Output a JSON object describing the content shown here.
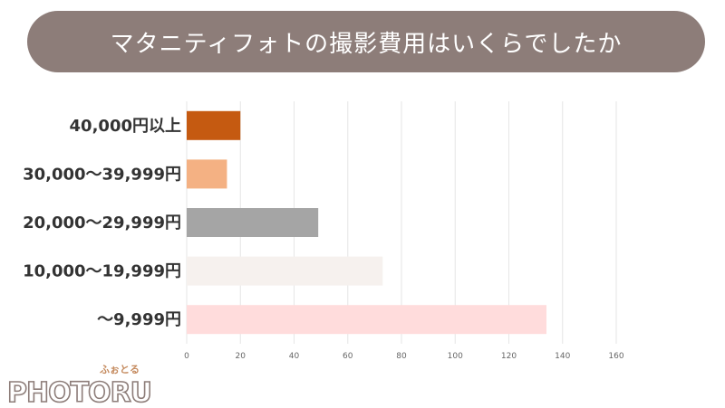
{
  "title": "マタニティフォトの撮影費用はいくらでしたか",
  "chart_data": {
    "type": "bar",
    "orientation": "horizontal",
    "categories": [
      "40,000円以上",
      "30,000〜39,999円",
      "20,000〜29,999円",
      "10,000〜19,999円",
      "〜9,999円"
    ],
    "values": [
      20,
      15,
      49,
      73,
      134
    ],
    "colors": [
      "#c55a11",
      "#f4b183",
      "#a5a5a5",
      "#f6f1ee",
      "#ffdcdc"
    ],
    "xlim": [
      0,
      160
    ],
    "xticks": [
      0,
      20,
      40,
      60,
      80,
      100,
      120,
      140,
      160
    ],
    "grid": true,
    "legend": "none"
  },
  "logo": {
    "sub": "ふぉとる",
    "main": "PHOTORU",
    "text_color": "#8d7d79",
    "accent_color": "#c58b5f"
  }
}
